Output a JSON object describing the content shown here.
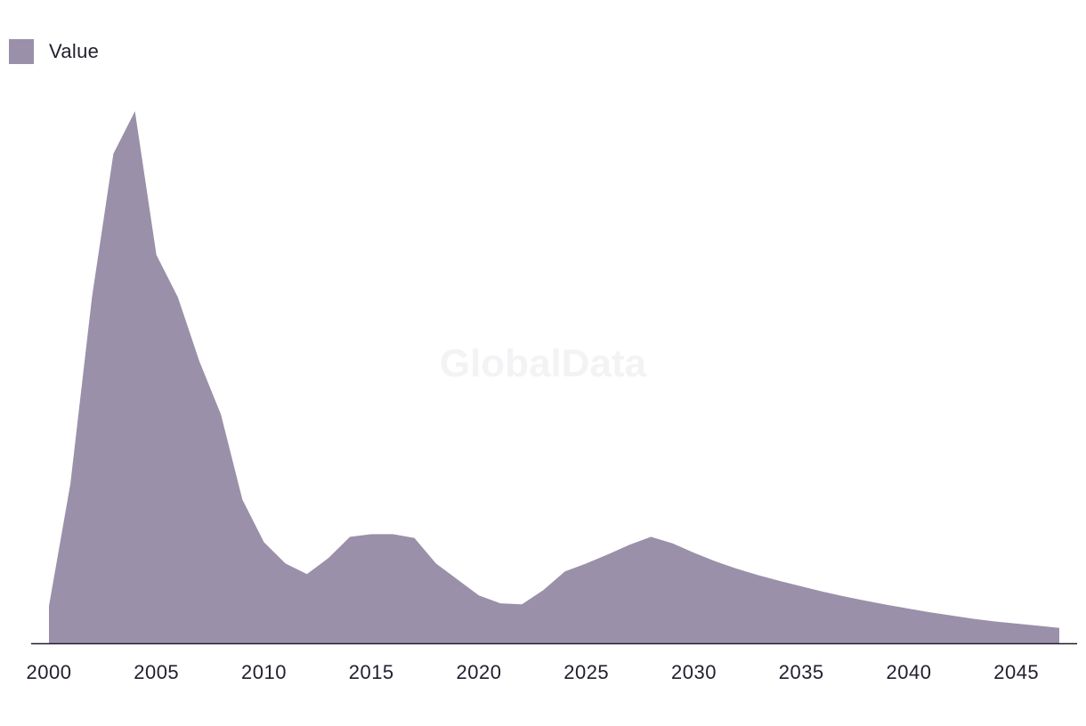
{
  "chart_data": {
    "type": "area",
    "x": [
      2000,
      2001,
      2002,
      2003,
      2004,
      2005,
      2006,
      2007,
      2008,
      2009,
      2010,
      2011,
      2012,
      2013,
      2014,
      2015,
      2016,
      2017,
      2018,
      2019,
      2020,
      2021,
      2022,
      2023,
      2024,
      2025,
      2026,
      2027,
      2028,
      2029,
      2030,
      2031,
      2032,
      2033,
      2034,
      2035,
      2036,
      2037,
      2038,
      2039,
      2040,
      2041,
      2042,
      2043,
      2044,
      2045,
      2046,
      2047
    ],
    "series": [
      {
        "name": "Value",
        "color": "#9a90a9",
        "values": [
          7,
          30,
          65,
          92,
          100,
          73,
          65,
          53,
          43,
          27,
          19,
          15,
          13,
          16,
          20,
          20.5,
          20.5,
          19.8,
          15,
          12,
          9,
          7.5,
          7.3,
          10,
          13.5,
          15,
          16.7,
          18.5,
          20,
          18.8,
          17,
          15.4,
          14,
          12.8,
          11.7,
          10.7,
          9.7,
          8.8,
          8,
          7.2,
          6.5,
          5.8,
          5.2,
          4.6,
          4.1,
          3.7,
          3.3,
          2.9
        ]
      }
    ],
    "xticks": [
      "2000",
      "2005",
      "2010",
      "2015",
      "2020",
      "2025",
      "2030",
      "2035",
      "2040",
      "2045"
    ],
    "ylim": [
      0,
      100
    ],
    "grid": false,
    "legend": "top-left",
    "watermark": "GlobalData"
  }
}
